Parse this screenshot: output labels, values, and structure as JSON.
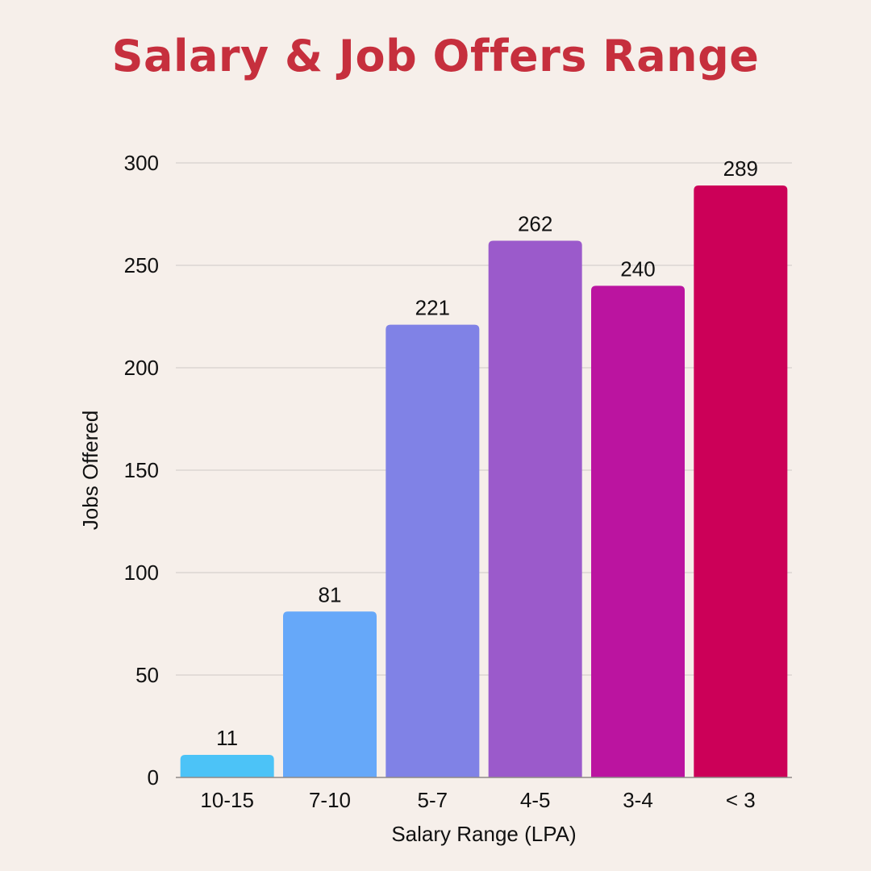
{
  "chart_data": {
    "type": "bar",
    "title": "Salary & Job Offers Range",
    "xlabel": "Salary Range (LPA)",
    "ylabel": "Jobs Offered",
    "categories": [
      "10-15",
      "7-10",
      "5-7",
      "4-5",
      "3-4",
      "< 3"
    ],
    "values": [
      11,
      81,
      221,
      262,
      240,
      289
    ],
    "data_labels": [
      "11",
      "81",
      "221",
      "262",
      "240",
      "289"
    ],
    "colors": [
      "#4cc3f7",
      "#66a8f9",
      "#8082e6",
      "#9b5acb",
      "#bb14a0",
      "#cc0058"
    ],
    "ylim": [
      0,
      300
    ],
    "yticks": [
      "0",
      "50",
      "100",
      "150",
      "200",
      "250",
      "300"
    ],
    "grid": true,
    "legend": "none"
  },
  "style": {
    "background": "#f6efea",
    "title_color": "#c62f3d",
    "grid_color": "#dcd6d2"
  }
}
